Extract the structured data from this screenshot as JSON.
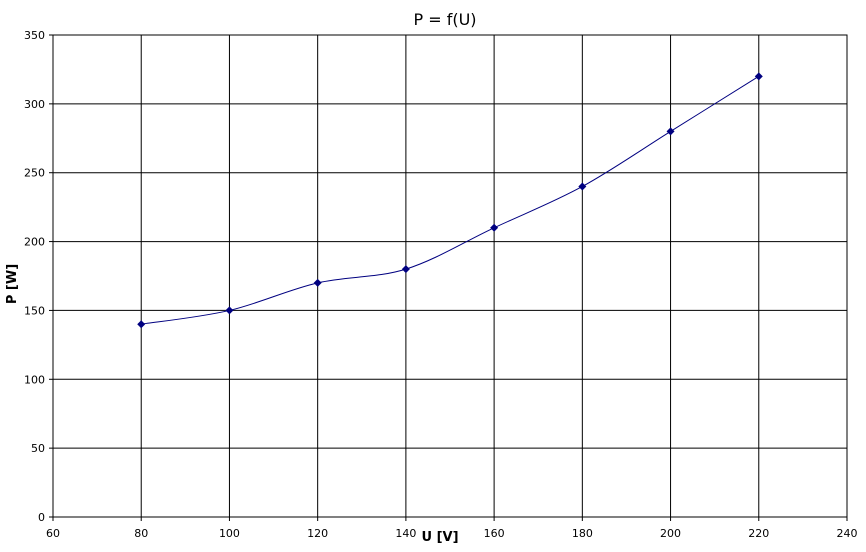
{
  "chart_data": {
    "type": "line",
    "title": "P = f(U)",
    "x_label": "U [V]",
    "y_label": "P [W]",
    "x": [
      80,
      100,
      120,
      140,
      160,
      180,
      200,
      220
    ],
    "series": [
      {
        "name": "P",
        "color": "#000080",
        "values": [
          140,
          150,
          170,
          180,
          210,
          240,
          280,
          320
        ]
      }
    ],
    "xlim": [
      60,
      240
    ],
    "xticks": [
      60,
      80,
      100,
      120,
      140,
      160,
      180,
      200,
      220,
      240
    ],
    "ylim": [
      0,
      350
    ],
    "yticks": [
      0,
      50,
      100,
      150,
      200,
      250,
      300,
      350
    ],
    "grid": true,
    "smooth": true
  }
}
